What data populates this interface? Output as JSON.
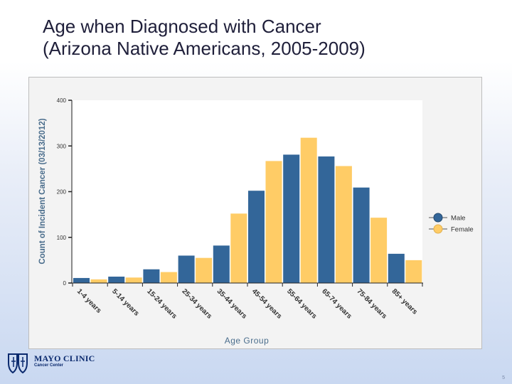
{
  "slide": {
    "title_line1": "Age when Diagnosed with Cancer",
    "title_line2": "(Arizona Native Americans, 2005-2009)",
    "page_number": "5"
  },
  "logo": {
    "name": "MAYO CLINIC",
    "subtitle": "Cancer Center"
  },
  "colors": {
    "male": "#336699",
    "female": "#ffcc66"
  },
  "chart_data": {
    "type": "bar",
    "title": "",
    "xlabel": "Age Group",
    "ylabel": "Count of Incident Cancer (03/13/2012)",
    "ylim": [
      0,
      400
    ],
    "yticks": [
      0,
      100,
      200,
      300,
      400
    ],
    "grid": false,
    "legend_position": "right",
    "categories": [
      "1-4 years",
      "5-14 years",
      "15-24 years",
      "25-34 years",
      "35-44 years",
      "45-54 years",
      "55-64 years",
      "65-74 years",
      "75-84 years",
      "85+ years"
    ],
    "series": [
      {
        "name": "Male",
        "values": [
          11,
          14,
          30,
          60,
          82,
          202,
          281,
          277,
          209,
          64
        ]
      },
      {
        "name": "Female",
        "values": [
          8,
          12,
          24,
          55,
          152,
          267,
          318,
          256,
          143,
          50
        ]
      }
    ]
  }
}
